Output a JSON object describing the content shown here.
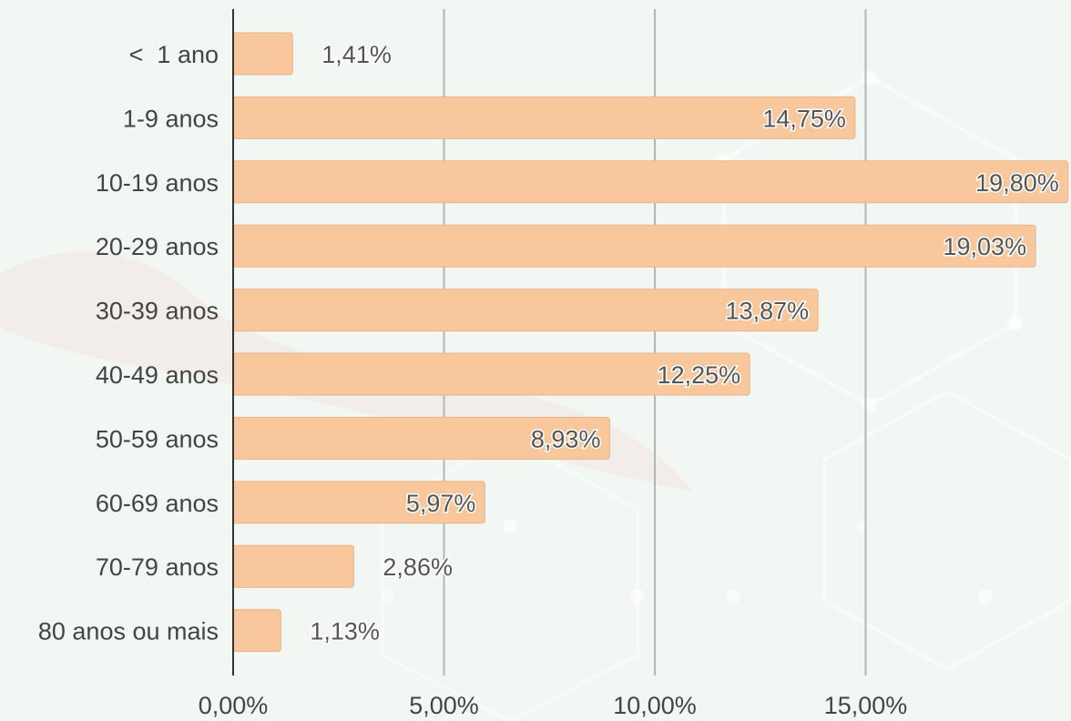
{
  "chart_data": {
    "type": "bar",
    "orientation": "horizontal",
    "categories": [
      "<  1 ano",
      "1-9 anos",
      "10-19 anos",
      "20-29 anos",
      "30-39 anos",
      "40-49 anos",
      "50-59 anos",
      "60-69 anos",
      "70-79 anos",
      "80 anos ou mais"
    ],
    "values": [
      1.41,
      14.75,
      19.8,
      19.03,
      13.87,
      12.25,
      8.93,
      5.97,
      2.86,
      1.13
    ],
    "value_labels": [
      "1,41%",
      "14,75%",
      "19,80%",
      "19,03%",
      "13,87%",
      "12,25%",
      "8,93%",
      "5,97%",
      "2,86%",
      "1,13%"
    ],
    "x_ticks": [
      0,
      5,
      10,
      15
    ],
    "x_tick_labels": [
      "0,00%",
      "5,00%",
      "10,00%",
      "15,00%"
    ],
    "xlim": [
      0,
      20
    ],
    "title": "",
    "xlabel": "",
    "ylabel": "",
    "grid": "vertical",
    "legend": "none",
    "colors": {
      "bar": "#f8c89c",
      "bar_stroke": "#e9b48a",
      "gridline": "#b5b5b5",
      "axis": "#333333",
      "background": "#f2f7f3"
    }
  }
}
